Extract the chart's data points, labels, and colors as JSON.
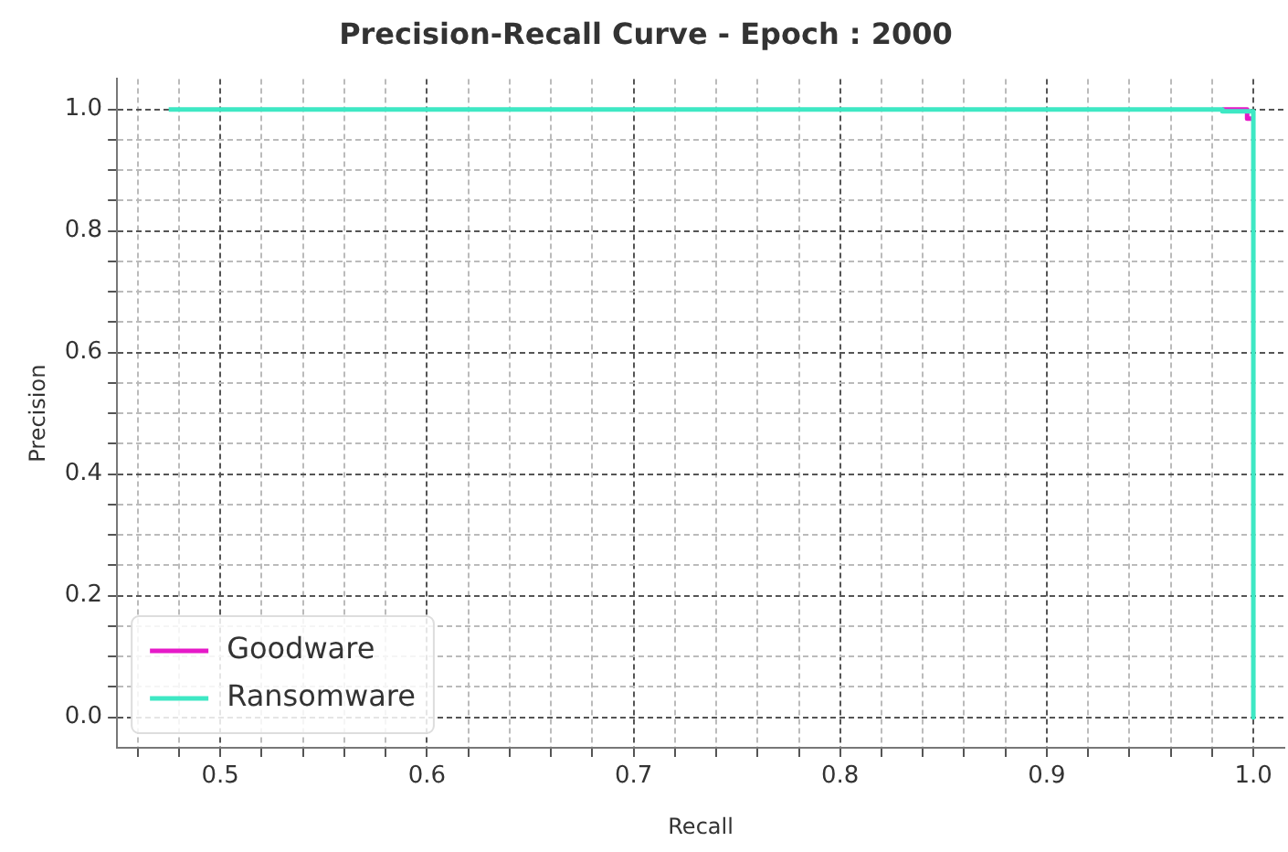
{
  "chart_data": {
    "type": "line",
    "title": "Precision-Recall Curve - Epoch : 2000",
    "xlabel": "Recall",
    "ylabel": "Precision",
    "series": [
      {
        "name": "Goodware",
        "color": "#e619c8",
        "x": [
          0.985,
          0.997,
          0.997,
          1.0
        ],
        "values": [
          1.0,
          1.0,
          0.985,
          0.985
        ]
      },
      {
        "name": "Ransomware",
        "color": "#3ee8c4",
        "x": [
          0.475,
          0.985,
          0.985,
          1.0,
          1.0
        ],
        "values": [
          1.0,
          1.0,
          0.997,
          0.997,
          0.0
        ]
      }
    ],
    "xlim": [
      0.45,
      1.015
    ],
    "ylim": [
      -0.05,
      1.05
    ],
    "xticks": [
      {
        "value": 0.46,
        "label": null
      },
      {
        "value": 0.48,
        "label": null
      },
      0.5,
      {
        "value": 0.52,
        "label": null
      },
      {
        "value": 0.54,
        "label": null
      },
      {
        "value": 0.56,
        "label": null
      },
      {
        "value": 0.58,
        "label": null
      },
      0.6,
      {
        "value": 0.62,
        "label": null
      },
      {
        "value": 0.64,
        "label": null
      },
      {
        "value": 0.66,
        "label": null
      },
      {
        "value": 0.68,
        "label": null
      },
      0.7,
      {
        "value": 0.72,
        "label": null
      },
      {
        "value": 0.74,
        "label": null
      },
      {
        "value": 0.76,
        "label": null
      },
      {
        "value": 0.78,
        "label": null
      },
      0.8,
      {
        "value": 0.82,
        "label": null
      },
      {
        "value": 0.84,
        "label": null
      },
      {
        "value": 0.86,
        "label": null
      },
      {
        "value": 0.88,
        "label": null
      },
      0.9,
      {
        "value": 0.92,
        "label": null
      },
      {
        "value": 0.94,
        "label": null
      },
      {
        "value": 0.96,
        "label": null
      },
      {
        "value": 0.98,
        "label": null
      },
      {
        "value": 1.0,
        "label": "1.0"
      }
    ],
    "yticks": [
      {
        "value": 0.0,
        "label": "0.0"
      },
      {
        "value": 0.05,
        "label": null
      },
      {
        "value": 0.1,
        "label": null
      },
      {
        "value": 0.15,
        "label": null
      },
      0.2,
      {
        "value": 0.25,
        "label": null
      },
      {
        "value": 0.3,
        "label": null
      },
      {
        "value": 0.35,
        "label": null
      },
      0.4,
      {
        "value": 0.45,
        "label": null
      },
      {
        "value": 0.5,
        "label": null
      },
      {
        "value": 0.55,
        "label": null
      },
      0.6,
      {
        "value": 0.65,
        "label": null
      },
      {
        "value": 0.7,
        "label": null
      },
      {
        "value": 0.75,
        "label": null
      },
      0.8,
      {
        "value": 0.85,
        "label": null
      },
      {
        "value": 0.9,
        "label": null
      },
      {
        "value": 0.95,
        "label": null
      },
      {
        "value": 1.0,
        "label": "1.0"
      }
    ],
    "grid": true,
    "legend": "bottom left",
    "marker": "none",
    "line_style": "solid"
  }
}
